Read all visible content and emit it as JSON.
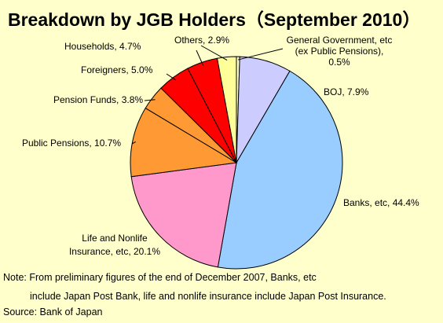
{
  "chart_data": {
    "type": "pie",
    "title": "Breakdown by JGB Holders（September 2010）",
    "slices": [
      {
        "name": "General Government, etc (ex Public Pensions)",
        "value": 0.5,
        "color": "#ffffcc",
        "label_lines": [
          "General Government, etc",
          "(ex Public Pensions),",
          "0.5%"
        ]
      },
      {
        "name": "BOJ",
        "value": 7.9,
        "color": "#ccccff",
        "label_lines": [
          "BOJ, 7.9%"
        ]
      },
      {
        "name": "Banks, etc",
        "value": 44.4,
        "color": "#99ccff",
        "label_lines": [
          "Banks, etc, 44.4%"
        ]
      },
      {
        "name": "Life and Nonlife Insurance, etc",
        "value": 20.1,
        "color": "#ff99cc",
        "label_lines": [
          "Life and Nonlife",
          "Insurance, etc, 20.1%"
        ]
      },
      {
        "name": "Public Pensions",
        "value": 10.7,
        "color": "#ff9933",
        "label_lines": [
          "Public Pensions, 10.7%"
        ]
      },
      {
        "name": "Pension Funds",
        "value": 3.8,
        "color": "#ff9933",
        "label_lines": [
          "Pension Funds, 3.8%"
        ]
      },
      {
        "name": "Foreigners",
        "value": 5.0,
        "color": "#ff0000",
        "label_lines": [
          "Foreigners, 5.0%"
        ]
      },
      {
        "name": "Households",
        "value": 4.7,
        "color": "#ff0000",
        "label_lines": [
          "Households, 4.7%"
        ]
      },
      {
        "name": "Others",
        "value": 2.9,
        "color": "#ffff99",
        "label_lines": [
          "Others, 2.9%"
        ]
      }
    ]
  },
  "notes": {
    "line1": "Note: From preliminary figures of the end of December 2007, Banks, etc",
    "line2": "include Japan Post Bank, life and nonlife insurance include Japan Post Insurance.",
    "source": "Source: Bank of Japan"
  }
}
